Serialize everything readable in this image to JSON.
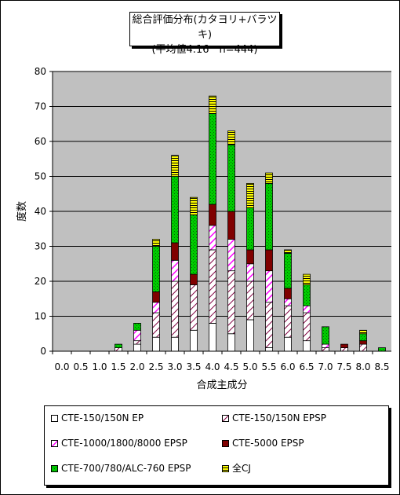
{
  "title": {
    "line1": "総合評価分布(カタヨリ+バラツキ)",
    "line2": "(平均値4.16　n=444)"
  },
  "chart_data": {
    "type": "bar",
    "stacked": true,
    "title": "総合評価分布(カタヨリ+バラツキ) (平均値4.16　n=444)",
    "xlabel": "合成主成分",
    "ylabel": "度数",
    "ylim": [
      0,
      80
    ],
    "yticks": [
      "0",
      "10",
      "20",
      "30",
      "40",
      "50",
      "60",
      "70",
      "80"
    ],
    "grid": true,
    "legend_position": "bottom",
    "categories": [
      "0.0",
      "0.5",
      "1.0",
      "1.5",
      "2.0",
      "2.5",
      "3.0",
      "3.5",
      "4.0",
      "4.5",
      "5.0",
      "5.5",
      "6.0",
      "6.5",
      "7.0",
      "7.5",
      "8.0",
      "8.5"
    ],
    "series": [
      {
        "name": "CTE-150/150N EP",
        "color": "#ffffff",
        "pattern": "solid",
        "values": [
          0,
          0,
          0,
          0,
          2,
          4,
          4,
          6,
          8,
          5,
          9,
          1,
          4,
          3,
          0,
          0,
          0,
          0
        ]
      },
      {
        "name": "CTE-150/150N EPSP",
        "color": "#800040",
        "pattern": "diagonal-hatch",
        "values": [
          0,
          0,
          0,
          1,
          1,
          7,
          16,
          13,
          21,
          18,
          11,
          13,
          9,
          8,
          1,
          1,
          2,
          0
        ]
      },
      {
        "name": "CTE-1000/1800/8000 EPSP",
        "color": "#ff00ff",
        "pattern": "diagonal-hatch-bold",
        "values": [
          0,
          0,
          0,
          0,
          3,
          3,
          6,
          0,
          7,
          9,
          5,
          9,
          2,
          2,
          1,
          0,
          0,
          0
        ]
      },
      {
        "name": "CTE-5000 EPSP",
        "color": "#800000",
        "pattern": "solid",
        "values": [
          0,
          0,
          0,
          0,
          0,
          3,
          5,
          3,
          6,
          8,
          4,
          6,
          3,
          0,
          0,
          1,
          1,
          0
        ]
      },
      {
        "name": "CTE-700/780/ALC-760 EPSP",
        "color": "#00c000",
        "pattern": "dots",
        "values": [
          0,
          0,
          0,
          1,
          2,
          13,
          19,
          17,
          26,
          19,
          12,
          19,
          10,
          6,
          5,
          0,
          2,
          1
        ]
      },
      {
        "name": "全CJ",
        "color": "#ffff00",
        "pattern": "horizontal-stripes",
        "values": [
          0,
          0,
          0,
          0,
          0,
          2,
          6,
          5,
          5,
          4,
          7,
          3,
          1,
          3,
          0,
          0,
          1,
          0
        ]
      }
    ]
  }
}
